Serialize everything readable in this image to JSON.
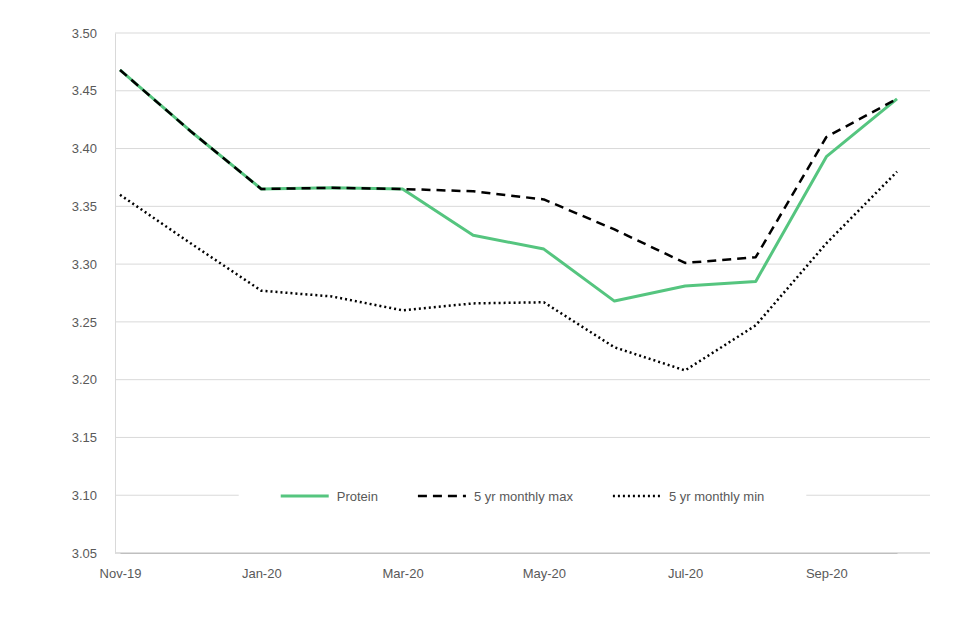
{
  "chart_data": {
    "type": "line",
    "categories": [
      "Nov-19",
      null,
      "Jan-20",
      null,
      "Mar-20",
      null,
      "May-20",
      null,
      "Jul-20",
      null,
      "Sep-20",
      null
    ],
    "series": [
      {
        "name": "Protein",
        "color": "#55c57f",
        "line_style": "solid",
        "values": [
          3.468,
          3.415,
          3.365,
          3.366,
          3.365,
          3.325,
          3.313,
          3.268,
          3.281,
          3.285,
          3.393,
          3.443
        ]
      },
      {
        "name": "5 yr monthly max",
        "color": "#000000",
        "line_style": "dashed",
        "values": [
          3.468,
          3.415,
          3.365,
          3.366,
          3.365,
          3.363,
          3.356,
          3.33,
          3.301,
          3.306,
          3.41,
          3.443
        ]
      },
      {
        "name": "5 yr monthly min",
        "color": "#000000",
        "line_style": "dotted",
        "values": [
          3.36,
          3.318,
          3.277,
          3.272,
          3.26,
          3.266,
          3.267,
          3.228,
          3.208,
          3.247,
          3.318,
          3.38
        ]
      }
    ],
    "ylim": [
      3.05,
      3.5
    ],
    "yticks": [
      3.05,
      {
        "value": 3.1,
        "label": "3.10"
      },
      3.15,
      {
        "value": 3.2,
        "label": "3.20"
      },
      3.25,
      {
        "value": 3.3,
        "label": "3.30"
      },
      3.35,
      {
        "value": 3.4,
        "label": "3.40"
      },
      3.45,
      {
        "value": 3.5,
        "label": "3.50"
      }
    ],
    "grid": true,
    "legend": "bottom"
  }
}
